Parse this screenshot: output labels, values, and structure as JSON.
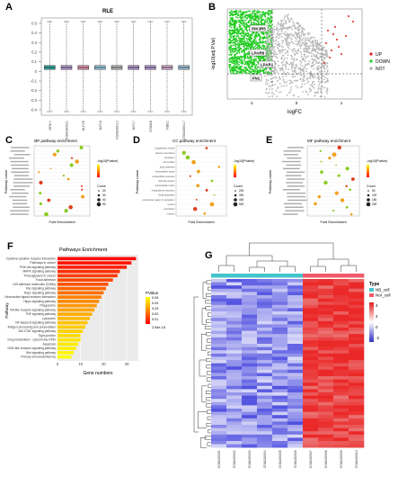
{
  "panels": {
    "A": {
      "label": "A",
      "title": "RLE",
      "y_ticks": [
        "0.5",
        "0.4",
        "0.3",
        "0.2",
        "0.1",
        "0",
        "-0.1",
        "-0.2",
        "-0.3",
        "-0.4"
      ],
      "samples": [
        "NPA 1",
        "GSM280021",
        "NLF25",
        "NIF18",
        "GSM280112",
        "NIF17",
        "GSM28",
        "NBE1",
        "GSM280117"
      ]
    },
    "B": {
      "label": "B",
      "y_label": "-log10(adj.P.Val)",
      "x_label": "logFC",
      "x_ticks": [
        "-1",
        "0",
        "1"
      ],
      "genes": [
        "PIK3R5",
        "LPAR6",
        "LPAR1",
        "FN1"
      ],
      "legend": [
        {
          "name": "UP",
          "color": "#e02020"
        },
        {
          "name": "DOWN",
          "color": "#22cc22"
        },
        {
          "name": "NOT",
          "color": "#aaaaaa"
        }
      ]
    },
    "C": {
      "label": "C",
      "title": "BP pathway enrichment",
      "y_label": "Pathway name",
      "x_label": "Fold Enrichment",
      "legend_color_title": "-log10(Pvalue)",
      "legend_size_title": "Count",
      "size_labels": [
        "20",
        "30",
        "40",
        "50"
      ]
    },
    "D": {
      "label": "D",
      "title": "CC pathway enrichment",
      "y_label": "Pathway name",
      "x_label": "Fold Enrichment",
      "legend_color_title": "-log10(Pvalue)",
      "legend_size_title": "Count",
      "size_labels": [
        "200",
        "300",
        "400",
        "500"
      ],
      "terms": [
        "cytoplasmic vesicle",
        "plasma membrane",
        "cytoplasm",
        "cell surface",
        "focal adhesion",
        "extracellular space",
        "extracellular exosome",
        "cell-cell junction",
        "extracellular matrix",
        "endoplasmic reticulum",
        "Golgi apparatus",
        "perinuclear region of cytoplasm",
        "cytosol",
        "membrane",
        "nucleus"
      ]
    },
    "E": {
      "label": "E",
      "title": "MF pathway enrichment",
      "y_label": "Pathway name",
      "x_label": "Fold Enrichment",
      "legend_color_title": "-log10(Pvalue)",
      "legend_size_title": "Count",
      "size_labels": [
        "50",
        "100",
        "150",
        "200"
      ]
    },
    "F": {
      "label": "F",
      "title": "Pathways Enrichment",
      "y_label": "Pathway",
      "x_label": "Gene numbers",
      "x_ticks": [
        "0",
        "10",
        "20",
        "30"
      ],
      "legend_title": "PValue",
      "legend_values": [
        "0.05",
        "0.04",
        "0.03",
        "0.02",
        "0.01",
        "2.94e-15"
      ]
    },
    "G": {
      "label": "G",
      "legend_title": "Type",
      "legend_items": [
        {
          "name": "NB_cell",
          "color": "#44c4cc"
        },
        {
          "name": "Nor_cell",
          "color": "#f05a6a"
        }
      ],
      "scale_ticks": [
        "4",
        "2",
        "0",
        "-2"
      ],
      "columns": [
        "GSM280001",
        "GSM280002",
        "GSM280003",
        "GSM280004",
        "GSM280005",
        "GSM280006",
        "GSM280007",
        "GSM280008",
        "GSM280009",
        "GSM280010"
      ]
    }
  },
  "chart_data": [
    {
      "type": "bar",
      "title": "Pathways Enrichment",
      "xlabel": "Gene numbers",
      "ylabel": "Pathway",
      "orientation": "horizontal",
      "categories": [
        "Cytokine-cytokine receptor interaction",
        "Pathways in cancer",
        "PI3K-Akt signaling pathway",
        "MAPK signaling pathway",
        "Proteoglycans in cancer",
        "Focal adhesion",
        "Cell adhesion molecules (CAMs)",
        "Ras signaling pathway",
        "Rap1 signaling pathway",
        "Neuroactive ligand-receptor interaction",
        "Hippo signaling pathway",
        "Phagosome",
        "Toll-like receptor signaling pathway",
        "TNF signaling pathway",
        "Lysosome",
        "NF-kappa B signaling pathway",
        "Antigen processing and presentation",
        "JAK-STAT signaling pathway",
        "Tight junction",
        "Drug metabolism - cytochrome P450",
        "Apoptosis",
        "NOD-like receptor signaling pathway",
        "Wnt signaling pathway",
        "Primary immunodeficiency"
      ],
      "values": [
        34,
        32,
        30,
        27,
        26,
        24,
        22,
        21,
        20,
        19,
        18,
        17,
        16,
        15,
        14,
        13,
        12,
        11,
        10,
        10,
        9,
        8,
        7,
        6
      ],
      "pvalues": [
        0.002,
        0.004,
        0.006,
        0.009,
        0.012,
        0.014,
        0.016,
        0.02,
        0.022,
        0.025,
        0.027,
        0.03,
        0.032,
        0.034,
        0.036,
        0.038,
        0.04,
        0.041,
        0.043,
        0.045,
        0.046,
        0.047,
        0.048,
        0.049
      ],
      "xlim": [
        0,
        35
      ]
    },
    {
      "type": "scatter",
      "title": "CC pathway enrichment",
      "xlabel": "Fold Enrichment",
      "ylabel": "Pathway name",
      "categories": [
        "cytoplasmic vesicle",
        "plasma membrane",
        "cytoplasm",
        "cell surface",
        "focal adhesion",
        "extracellular space",
        "extracellular exosome",
        "cell-cell junction",
        "extracellular matrix",
        "endoplasmic reticulum",
        "Golgi apparatus",
        "perinuclear region of cytoplasm",
        "cytosol",
        "membrane",
        "nucleus"
      ],
      "x": [
        1.15,
        1.3,
        1.45,
        1.25,
        1.6,
        1.35,
        1.5,
        1.2,
        1.7,
        1.3,
        1.4,
        1.25,
        1.55,
        1.2,
        1.35
      ],
      "sizes": [
        250,
        480,
        500,
        300,
        220,
        320,
        400,
        210,
        200,
        260,
        230,
        270,
        450,
        350,
        380
      ]
    }
  ]
}
